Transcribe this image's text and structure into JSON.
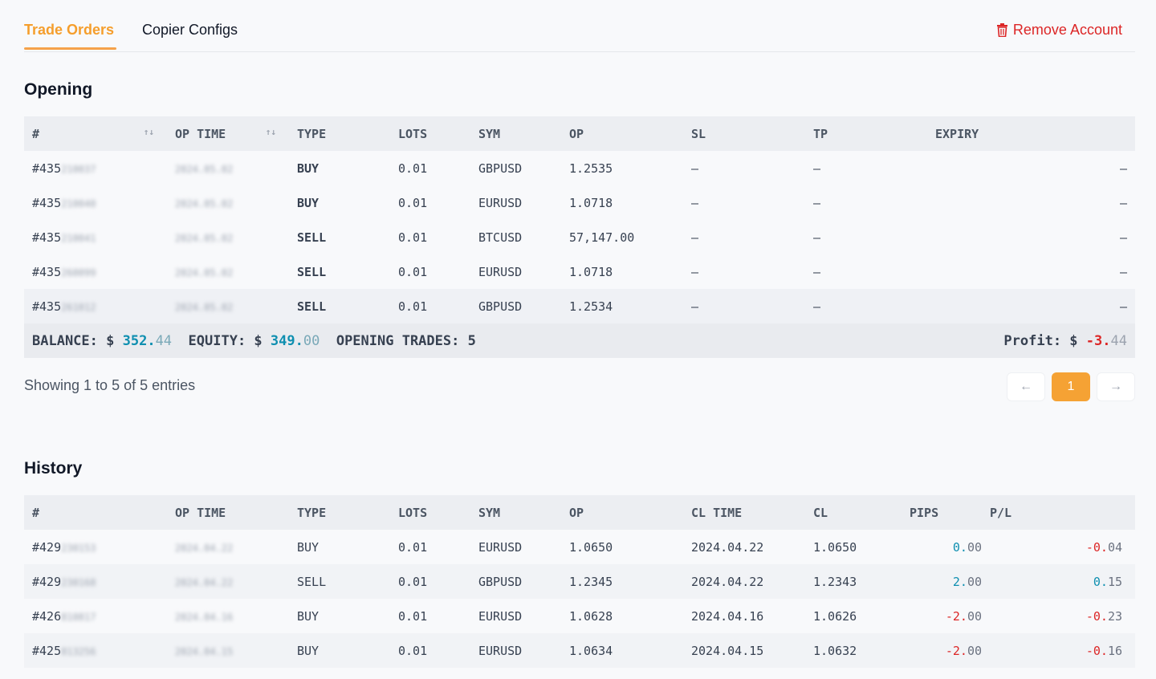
{
  "tabs": [
    {
      "label": "Trade Orders"
    },
    {
      "label": "Copier Configs"
    }
  ],
  "remove_account": {
    "label": "Remove Account",
    "icon": "trash-icon"
  },
  "opening": {
    "title": "Opening",
    "columns": [
      "#",
      "OP TIME",
      "TYPE",
      "LOTS",
      "SYM",
      "OP",
      "SL",
      "TP",
      "EXPIRY"
    ],
    "rows": [
      {
        "id": "#435",
        "id_hidden": "210037",
        "op_time": "2024.05.02",
        "type": "BUY",
        "lots": "0.01",
        "sym": "GBPUSD",
        "op": "1.2535",
        "sl": "–",
        "tp": "–",
        "expiry": "–"
      },
      {
        "id": "#435",
        "id_hidden": "210040",
        "op_time": "2024.05.02",
        "type": "BUY",
        "lots": "0.01",
        "sym": "EURUSD",
        "op": "1.0718",
        "sl": "–",
        "tp": "–",
        "expiry": "–"
      },
      {
        "id": "#435",
        "id_hidden": "210041",
        "op_time": "2024.05.02",
        "type": "SELL",
        "lots": "0.01",
        "sym": "BTCUSD",
        "op": "57,147.00",
        "sl": "–",
        "tp": "–",
        "expiry": "–"
      },
      {
        "id": "#435",
        "id_hidden": "260099",
        "op_time": "2024.05.02",
        "type": "SELL",
        "lots": "0.01",
        "sym": "EURUSD",
        "op": "1.0718",
        "sl": "–",
        "tp": "–",
        "expiry": "–"
      },
      {
        "id": "#435",
        "id_hidden": "261012",
        "op_time": "2024.05.02",
        "type": "SELL",
        "lots": "0.01",
        "sym": "GBPUSD",
        "op": "1.2534",
        "sl": "–",
        "tp": "–",
        "expiry": "–"
      }
    ],
    "summary": {
      "balance_label": "BALANCE: $",
      "balance_int": "352.",
      "balance_dec": "44",
      "equity_label": "EQUITY: $",
      "equity_int": "349.",
      "equity_dec": "00",
      "trades_label": "OPENING TRADES:",
      "trades_value": "5",
      "profit_label": "Profit: $",
      "profit_int": "-3.",
      "profit_dec": "44"
    },
    "showing": "Showing 1 to 5 of 5 entries",
    "pager": {
      "prev": "←",
      "page": "1",
      "next": "→"
    }
  },
  "history": {
    "title": "History",
    "columns": [
      "#",
      "OP TIME",
      "TYPE",
      "LOTS",
      "SYM",
      "OP",
      "CL TIME",
      "CL",
      "PIPS",
      "P/L"
    ],
    "rows": [
      {
        "id": "#429",
        "id_hidden": "230153",
        "op_time": "2024.04.22",
        "type": "BUY",
        "lots": "0.01",
        "sym": "EURUSD",
        "op": "1.0650",
        "cl_time": "2024.04.22",
        "cl": "1.0650",
        "pips_int": "0.",
        "pips_dec": "00",
        "pips_sign": "pos",
        "pl_int": "-0.",
        "pl_dec": "04",
        "pl_sign": "neg"
      },
      {
        "id": "#429",
        "id_hidden": "230168",
        "op_time": "2024.04.22",
        "type": "SELL",
        "lots": "0.01",
        "sym": "GBPUSD",
        "op": "1.2345",
        "cl_time": "2024.04.22",
        "cl": "1.2343",
        "pips_int": "2.",
        "pips_dec": "00",
        "pips_sign": "pos",
        "pl_int": "0.",
        "pl_dec": "15",
        "pl_sign": "pos"
      },
      {
        "id": "#426",
        "id_hidden": "810817",
        "op_time": "2024.04.16",
        "type": "BUY",
        "lots": "0.01",
        "sym": "EURUSD",
        "op": "1.0628",
        "cl_time": "2024.04.16",
        "cl": "1.0626",
        "pips_int": "-2.",
        "pips_dec": "00",
        "pips_sign": "neg",
        "pl_int": "-0.",
        "pl_dec": "23",
        "pl_sign": "neg"
      },
      {
        "id": "#425",
        "id_hidden": "813256",
        "op_time": "2024.04.15",
        "type": "BUY",
        "lots": "0.01",
        "sym": "EURUSD",
        "op": "1.0634",
        "cl_time": "2024.04.15",
        "cl": "1.0632",
        "pips_int": "-2.",
        "pips_dec": "00",
        "pips_sign": "neg",
        "pl_int": "-0.",
        "pl_dec": "16",
        "pl_sign": "neg"
      }
    ]
  },
  "colors": {
    "accent": "#f59e2c",
    "buy": "#0e8fb0",
    "sell": "#dc2626"
  }
}
